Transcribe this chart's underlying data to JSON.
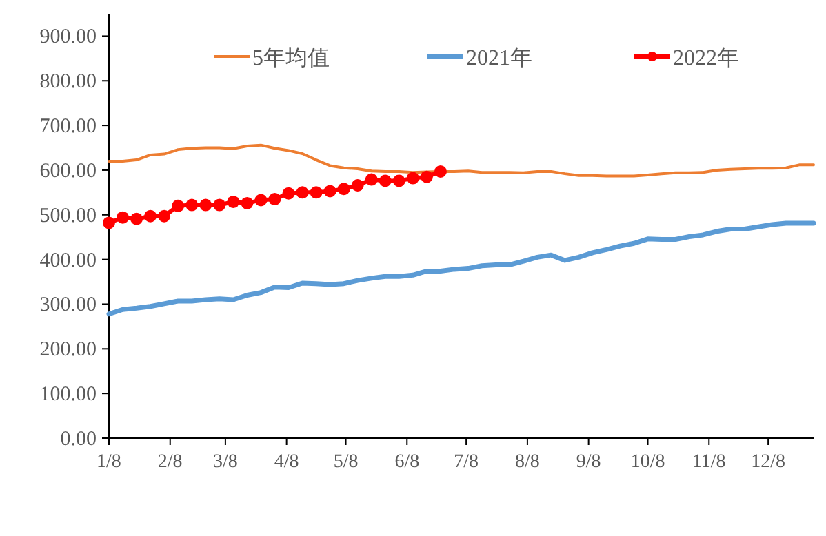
{
  "chart_data": {
    "type": "line",
    "x": [
      "--01-08",
      "--01-15",
      "--01-22",
      "--01-29",
      "--02-05",
      "--02-12",
      "--02-19",
      "--02-26",
      "--03-05",
      "--03-12",
      "--03-19",
      "--03-26",
      "--04-02",
      "--04-09",
      "--04-16",
      "--04-23",
      "--04-30",
      "--05-07",
      "--05-14",
      "--05-21",
      "--05-28",
      "--06-04",
      "--06-11",
      "--06-18",
      "--06-25",
      "--07-02",
      "--07-09",
      "--07-16",
      "--07-23",
      "--07-30",
      "--08-06",
      "--08-13",
      "--08-20",
      "--08-27",
      "--09-03",
      "--09-10",
      "--09-17",
      "--09-24",
      "--10-01",
      "--10-08",
      "--10-15",
      "--10-22",
      "--10-29",
      "--11-05",
      "--11-12",
      "--11-19",
      "--11-26",
      "--12-03",
      "--12-10",
      "--12-17",
      "--12-24",
      "--12-31"
    ],
    "series": [
      {
        "name": "5年均值",
        "color": "#ed7d31",
        "marker": "none",
        "values": [
          620,
          620,
          623,
          634,
          636,
          646,
          649,
          650,
          650,
          648,
          654,
          656,
          649,
          644,
          637,
          623,
          610,
          605,
          603,
          598,
          597,
          597,
          595,
          596,
          597,
          597,
          598,
          595,
          595,
          595,
          594,
          597,
          597,
          592,
          588,
          588,
          587,
          587,
          587,
          589,
          592,
          594,
          594,
          595,
          600,
          602,
          603,
          604,
          604,
          605,
          612,
          612
        ]
      },
      {
        "name": "2021年",
        "color": "#5b9bd5",
        "marker": "none",
        "values": [
          278,
          288,
          291,
          295,
          301,
          307,
          307,
          310,
          312,
          310,
          320,
          326,
          338,
          337,
          347,
          346,
          344,
          346,
          353,
          358,
          362,
          362,
          365,
          374,
          374,
          378,
          380,
          386,
          388,
          388,
          396,
          405,
          410,
          398,
          405,
          415,
          422,
          430,
          436,
          446,
          445,
          445,
          451,
          455,
          463,
          468,
          468,
          473,
          478,
          481,
          481,
          481
        ]
      },
      {
        "name": "2022年",
        "color": "#ff0000",
        "marker": "circle",
        "x": [
          "--01-08",
          "--01-15",
          "--01-22",
          "--01-29",
          "--02-05",
          "--02-12",
          "--02-19",
          "--02-26",
          "--03-05",
          "--03-12",
          "--03-19",
          "--03-26",
          "--04-02",
          "--04-09",
          "--04-16",
          "--04-23",
          "--04-30",
          "--05-07",
          "--05-14",
          "--05-21",
          "--05-28",
          "--06-04",
          "--06-11",
          "--06-18",
          "--06-25"
        ],
        "values": [
          482,
          494,
          491,
          497,
          497,
          520,
          522,
          522,
          522,
          529,
          526,
          533,
          535,
          548,
          550,
          550,
          553,
          558,
          566,
          579,
          576,
          576,
          582,
          585,
          597
        ]
      }
    ],
    "xlim": [
      "--01-08",
      "--12-31"
    ],
    "xticks": [
      {
        "value": "--01-08",
        "label": "1/8"
      },
      {
        "value": "--02-08",
        "label": "2/8"
      },
      {
        "value": "--03-08",
        "label": "3/8"
      },
      {
        "value": "--04-08",
        "label": "4/8"
      },
      {
        "value": "--05-08",
        "label": "5/8"
      },
      {
        "value": "--06-08",
        "label": "6/8"
      },
      {
        "value": "--07-08",
        "label": "7/8"
      },
      {
        "value": "--08-08",
        "label": "8/8"
      },
      {
        "value": "--09-08",
        "label": "9/8"
      },
      {
        "value": "--10-08",
        "label": "10/8"
      },
      {
        "value": "--11-08",
        "label": "11/8"
      },
      {
        "value": "--12-08",
        "label": "12/8"
      }
    ],
    "ylim": [
      0,
      950
    ],
    "yticks": [
      {
        "value": 0,
        "label": "0.00"
      },
      {
        "value": 100,
        "label": "100.00"
      },
      {
        "value": 200,
        "label": "200.00"
      },
      {
        "value": 300,
        "label": "300.00"
      },
      {
        "value": 400,
        "label": "400.00"
      },
      {
        "value": 500,
        "label": "500.00"
      },
      {
        "value": 600,
        "label": "600.00"
      },
      {
        "value": 700,
        "label": "700.00"
      },
      {
        "value": 800,
        "label": "800.00"
      },
      {
        "value": 900,
        "label": "900.00"
      }
    ],
    "grid": false,
    "legend": "top"
  }
}
